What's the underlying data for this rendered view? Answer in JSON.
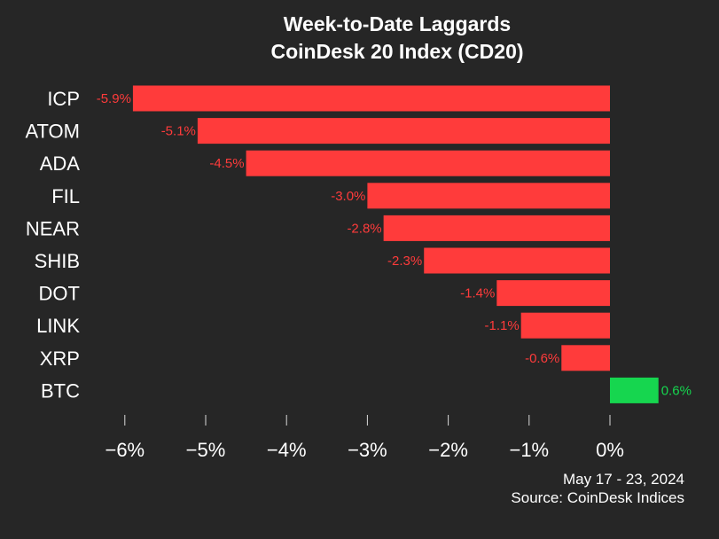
{
  "chart_data": {
    "type": "bar",
    "orientation": "horizontal",
    "title": "Week-to-Date Laggards",
    "subtitle": "CoinDesk 20 Index (CD20)",
    "categories": [
      "ICP",
      "ATOM",
      "ADA",
      "FIL",
      "NEAR",
      "SHIB",
      "DOT",
      "LINK",
      "XRP",
      "BTC"
    ],
    "values": [
      -5.9,
      -5.1,
      -4.5,
      -3.0,
      -2.8,
      -2.3,
      -1.4,
      -1.1,
      -0.6,
      0.6
    ],
    "value_labels": [
      "-5.9%",
      "-5.1%",
      "-4.5%",
      "-3.0%",
      "-2.8%",
      "-2.3%",
      "-1.4%",
      "-1.1%",
      "-0.6%",
      "0.6%"
    ],
    "x_ticks": [
      -6,
      -5,
      -4,
      -3,
      -2,
      -1,
      0
    ],
    "x_tick_labels": [
      "−6%",
      "−5%",
      "−4%",
      "−3%",
      "−2%",
      "−1%",
      "0%"
    ],
    "xlim": [
      -6.5,
      0.9
    ],
    "xlabel": "",
    "ylabel": "",
    "grid": false,
    "legend": "none",
    "colors": {
      "negative": "#ff3b3b",
      "positive": "#16d64f",
      "background": "#262626",
      "text": "#ffffff"
    }
  },
  "footer": {
    "date_range": "May 17 - 23, 2024",
    "source": "Source: CoinDesk Indices"
  }
}
